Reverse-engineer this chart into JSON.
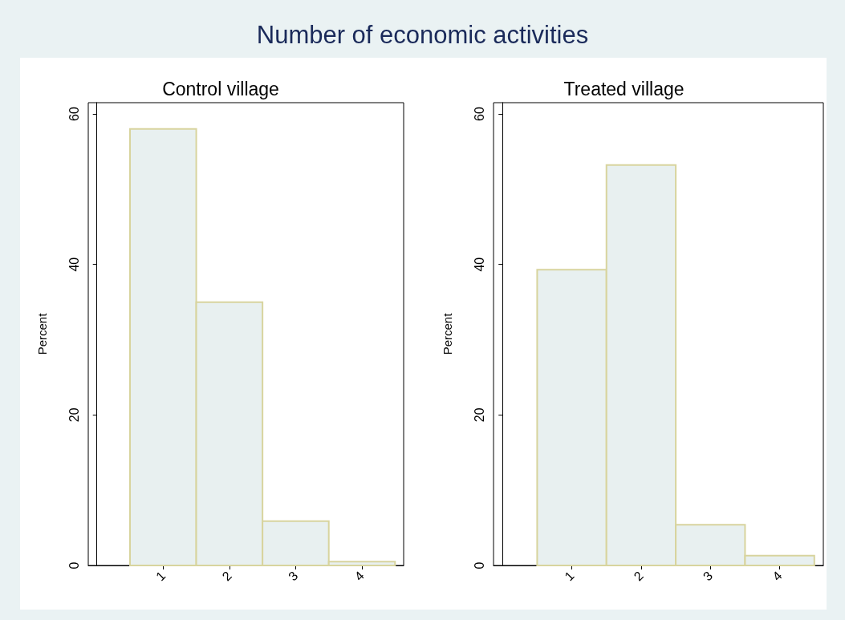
{
  "chart_data": [
    {
      "type": "histogram",
      "title": "Number of economic activities",
      "subtitle": "Control village",
      "ylabel": "Percent",
      "bins": [
        0.5,
        1.5,
        2.5,
        3.5,
        4.5
      ],
      "values": [
        58.0,
        35.0,
        5.9,
        0.5
      ],
      "color": "#e8f0f0",
      "xlim": [
        -0.13,
        4.63
      ],
      "xticks": [
        1,
        2,
        3,
        4
      ],
      "ylim": [
        0,
        61.5
      ],
      "yticks": [
        0,
        20,
        40,
        60
      ],
      "grid": false
    },
    {
      "type": "histogram",
      "subtitle": "Treated village",
      "ylabel": "Percent",
      "bins": [
        0.5,
        1.5,
        2.5,
        3.5,
        4.5
      ],
      "values": [
        39.3,
        53.2,
        5.4,
        1.3
      ],
      "color": "#e8f0f0",
      "xlim": [
        -0.13,
        4.63
      ],
      "xticks": [
        1,
        2,
        3,
        4
      ],
      "ylim": [
        0,
        61.5
      ],
      "yticks": [
        0,
        20,
        40,
        60
      ],
      "grid": false
    }
  ]
}
